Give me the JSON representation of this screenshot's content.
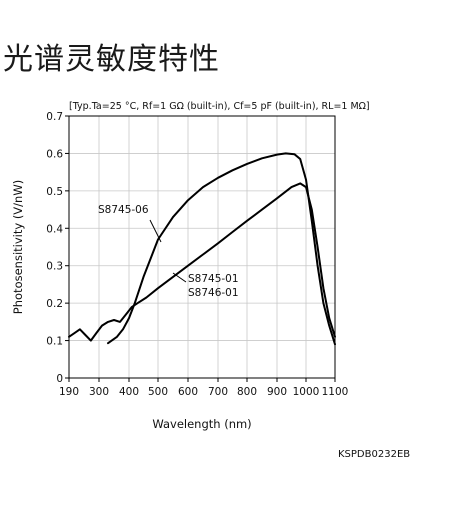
{
  "page": {
    "title": "光谱灵敏度特性"
  },
  "chart_data": {
    "type": "line",
    "conditions": "[Typ.Ta=25 °C, Rf=1 GΩ (built-in), Cf=5 pF (built-in), RL=1 MΩ]",
    "xlabel": "Wavelength (nm)",
    "ylabel": "Photosensitivity (V/nW)",
    "xlim": [
      190,
      1100
    ],
    "ylim": [
      0,
      0.7
    ],
    "xticks": [
      190,
      300,
      400,
      500,
      600,
      700,
      800,
      900,
      1000,
      1100
    ],
    "yticks": [
      0,
      0.1,
      0.2,
      0.3,
      0.4,
      0.5,
      0.6,
      0.7
    ],
    "grid": true,
    "footer_code": "KSPDB0232EB",
    "series": [
      {
        "name": "S8745-06",
        "x": [
          330,
          360,
          380,
          400,
          420,
          450,
          480,
          500,
          550,
          600,
          650,
          700,
          750,
          800,
          850,
          900,
          930,
          960,
          980,
          1000,
          1020,
          1040,
          1060,
          1080,
          1100
        ],
        "y": [
          0.093,
          0.11,
          0.13,
          0.16,
          0.2,
          0.27,
          0.33,
          0.37,
          0.43,
          0.475,
          0.51,
          0.535,
          0.555,
          0.572,
          0.587,
          0.597,
          0.6,
          0.598,
          0.585,
          0.53,
          0.42,
          0.3,
          0.2,
          0.14,
          0.09
        ]
      },
      {
        "name": "S8745-01",
        "name_2": "S8746-01",
        "x": [
          190,
          210,
          230,
          250,
          270,
          290,
          310,
          330,
          350,
          370,
          390,
          410,
          430,
          460,
          500,
          550,
          600,
          650,
          700,
          750,
          800,
          850,
          900,
          950,
          980,
          1000,
          1020,
          1040,
          1060,
          1080,
          1100
        ],
        "y": [
          0.11,
          0.12,
          0.13,
          0.115,
          0.1,
          0.12,
          0.14,
          0.15,
          0.155,
          0.15,
          0.17,
          0.19,
          0.2,
          0.215,
          0.24,
          0.27,
          0.3,
          0.33,
          0.36,
          0.39,
          0.42,
          0.45,
          0.48,
          0.51,
          0.52,
          0.51,
          0.45,
          0.35,
          0.24,
          0.16,
          0.11
        ]
      }
    ]
  }
}
